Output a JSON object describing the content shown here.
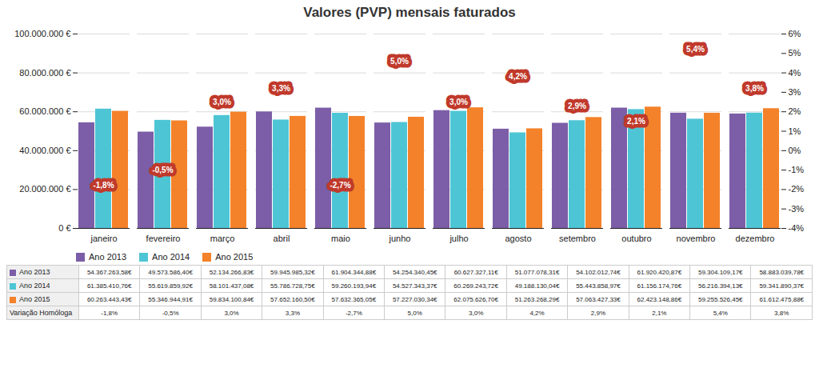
{
  "chart_data": {
    "type": "bar",
    "title": "Valores (PVP) mensais faturados",
    "categories": [
      "janeiro",
      "fevereiro",
      "março",
      "abril",
      "maio",
      "junho",
      "julho",
      "agosto",
      "setembro",
      "outubro",
      "novembro",
      "dezembro"
    ],
    "series": [
      {
        "name": "Ano 2013",
        "color": "#7B5EA7",
        "values": [
          54367263.58,
          49573586.4,
          52134266.83,
          59945985.32,
          61904344.88,
          54254340.45,
          60627327.11,
          51077078.31,
          54102012.74,
          61920420.87,
          59304109.17,
          58883039.78
        ],
        "value_labels": [
          "54.367.263,58€",
          "49.573.586,40€",
          "52.134.266,83€",
          "59.945.985,32€",
          "61.904.344,88€",
          "54.254.340,45€",
          "60.627.327,11€",
          "51.077.078,31€",
          "54.102.012,74€",
          "61.920.420,87€",
          "59.304.109,17€",
          "58.883.039,78€"
        ]
      },
      {
        "name": "Ano 2014",
        "color": "#4EC5D4",
        "values": [
          61385410.76,
          55619859.92,
          58101437.08,
          55786728.75,
          59260193.94,
          54527343.37,
          60269243.72,
          49188130.04,
          55443858.97,
          61156174.76,
          56216394.13,
          59341890.37
        ],
        "value_labels": [
          "61.385.410,76€",
          "55.619.859,92€",
          "58.101.437,08€",
          "55.786.728,75€",
          "59.260.193,94€",
          "54.527.343,37€",
          "60.269.243,72€",
          "49.188.130,04€",
          "55.443.858,97€",
          "61.156.174,76€",
          "56.216.394,13€",
          "59.341.890,37€"
        ]
      },
      {
        "name": "Ano 2015",
        "color": "#F4822A",
        "values": [
          60263443.43,
          55346944.91,
          59834100.84,
          57652160.5,
          57632365.05,
          57227030.34,
          62075626.7,
          51263268.29,
          57063427.33,
          62423148.86,
          59255526.45,
          61612475.88
        ],
        "value_labels": [
          "60.263.443,43€",
          "55.346.944,91€",
          "59.834.100,84€",
          "57.652.160,50€",
          "57.632.365,05€",
          "57.227.030,34€",
          "62.075.626,70€",
          "51.263.268,29€",
          "57.063.427,33€",
          "62.423.148,86€",
          "59.255.526,45€",
          "61.612.475,88€"
        ]
      }
    ],
    "variation": {
      "name": "Variação Homóloga",
      "color": "#C0392B",
      "values": [
        -1.8,
        -0.5,
        3.0,
        3.3,
        -2.7,
        5.0,
        3.0,
        4.2,
        2.9,
        2.1,
        5.4,
        3.8
      ],
      "value_labels": [
        "-1,8%",
        "-0,5%",
        "3,0%",
        "3,3%",
        "-2,7%",
        "5,0%",
        "3,0%",
        "4,2%",
        "2,9%",
        "2,1%",
        "5,4%",
        "3,8%"
      ],
      "label_y": [
        22000000,
        30000000,
        65000000,
        72000000,
        22000000,
        86000000,
        65000000,
        78000000,
        63000000,
        55000000,
        92000000,
        72000000
      ]
    },
    "ylim": [
      0,
      100000000
    ],
    "yticks": [
      {
        "value": 0,
        "label": "0 €"
      },
      {
        "value": 20000000,
        "label": "20.000.000 €"
      },
      {
        "value": 40000000,
        "label": "40.000.000 €"
      },
      {
        "value": 60000000,
        "label": "60.000.000 €"
      },
      {
        "value": 80000000,
        "label": "80.000.000 €"
      },
      {
        "value": 100000000,
        "label": "100.000.000 €"
      }
    ],
    "y2lim": [
      -4,
      6
    ],
    "y2ticks": [
      {
        "value": -4,
        "label": "-4%"
      },
      {
        "value": -3,
        "label": "-3%"
      },
      {
        "value": -2,
        "label": "-2%"
      },
      {
        "value": -1,
        "label": "-1%"
      },
      {
        "value": 0,
        "label": "0%"
      },
      {
        "value": 1,
        "label": "1%"
      },
      {
        "value": 2,
        "label": "2%"
      },
      {
        "value": 3,
        "label": "3%"
      },
      {
        "value": 4,
        "label": "4%"
      },
      {
        "value": 5,
        "label": "5%"
      },
      {
        "value": 6,
        "label": "6%"
      }
    ],
    "grid": true,
    "legend": "lower left"
  }
}
